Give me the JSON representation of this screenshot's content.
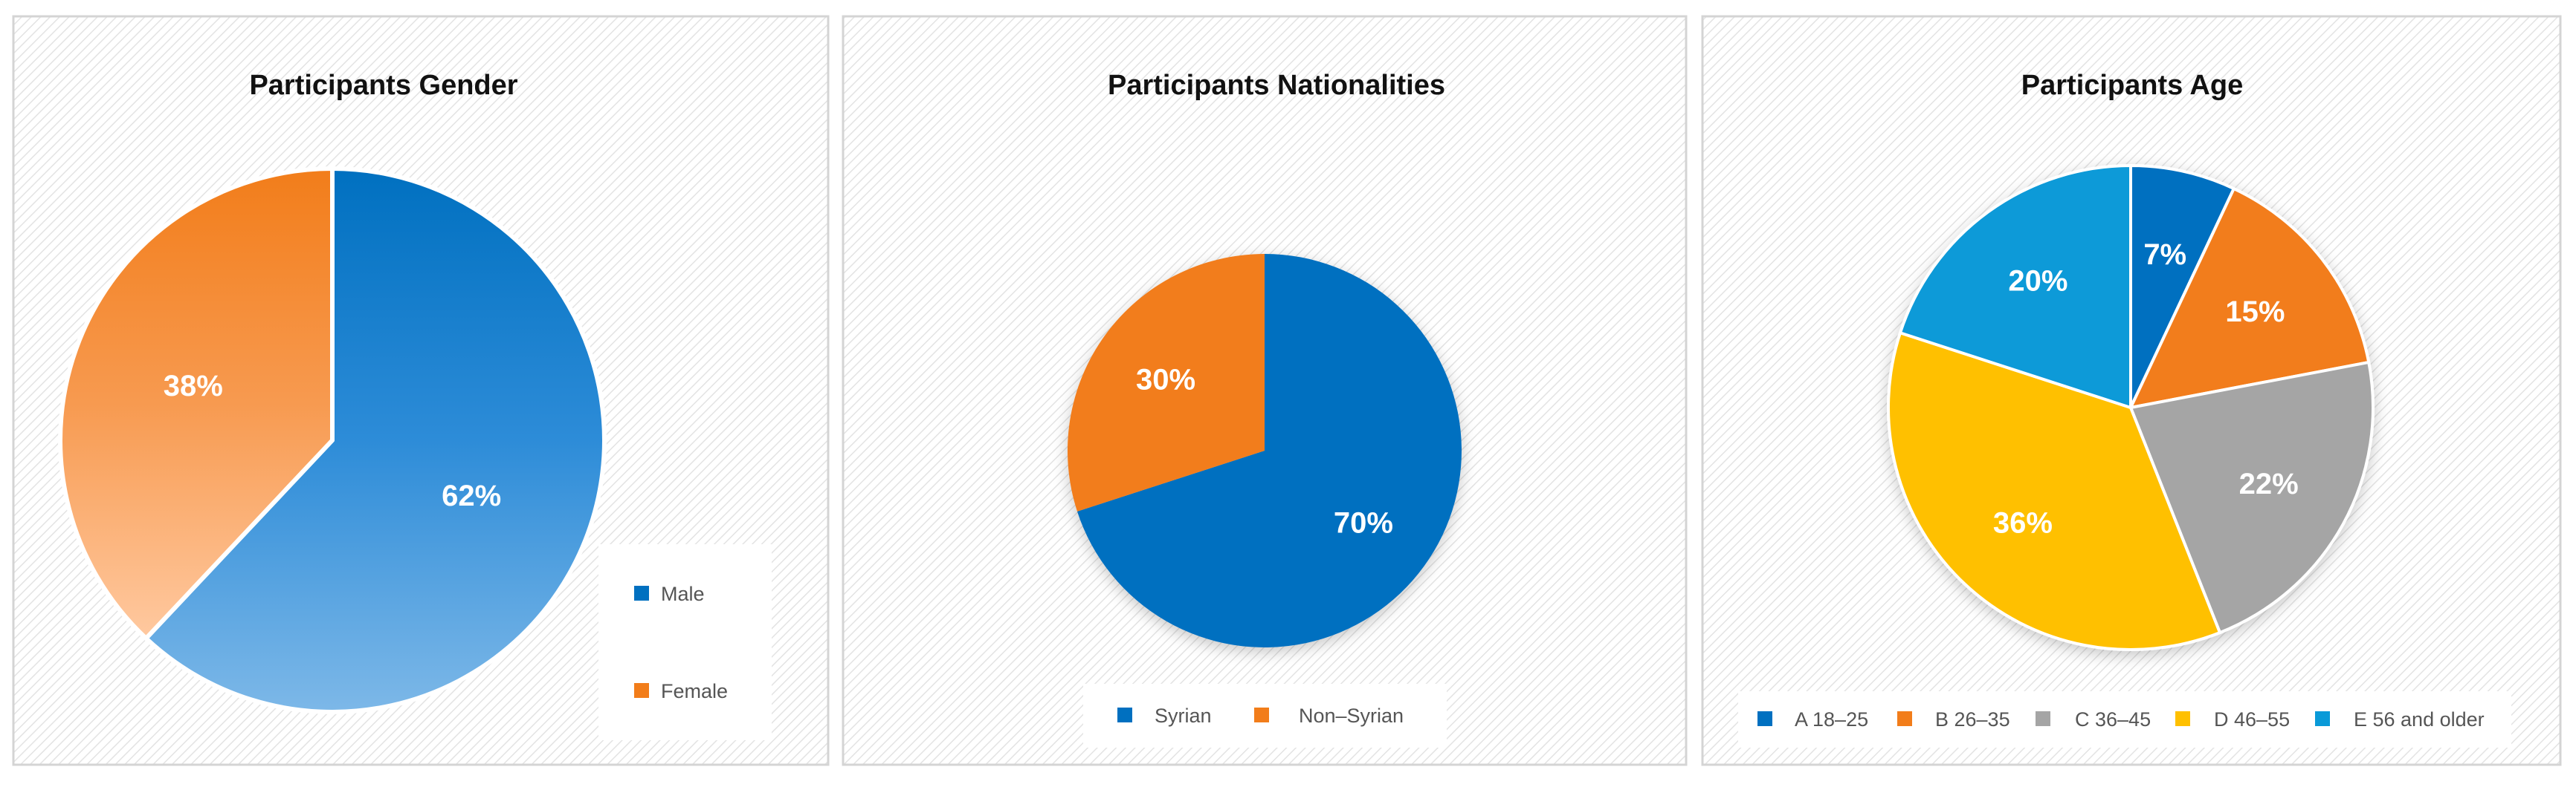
{
  "chart_data": [
    {
      "type": "pie",
      "title": "Participants Gender",
      "categories": [
        "Male",
        "Female"
      ],
      "values": [
        62,
        38
      ],
      "labels": [
        "62%",
        "38%"
      ],
      "colors": [
        "#0070C0",
        "#F27D1A"
      ],
      "legend_position": "bottom-right"
    },
    {
      "type": "pie",
      "title": "Participants Nationalities",
      "categories": [
        "Syrian",
        "Non–Syrian"
      ],
      "values": [
        70,
        30
      ],
      "labels": [
        "70%",
        "30%"
      ],
      "colors": [
        "#0070C0",
        "#F27D1A"
      ],
      "legend_position": "bottom"
    },
    {
      "type": "pie",
      "title": "Participants Age",
      "categories": [
        "A 18–25",
        "B 26–35",
        "C 36–45",
        "D 46–55",
        "E 56 and older"
      ],
      "values": [
        7,
        15,
        22,
        36,
        20
      ],
      "labels": [
        "7%",
        "15%",
        "22%",
        "36%",
        "20%"
      ],
      "colors": [
        "#0070C0",
        "#F27D1A",
        "#A5A5A5",
        "#FFC000",
        "#0A9AD8"
      ],
      "legend_position": "bottom"
    }
  ]
}
